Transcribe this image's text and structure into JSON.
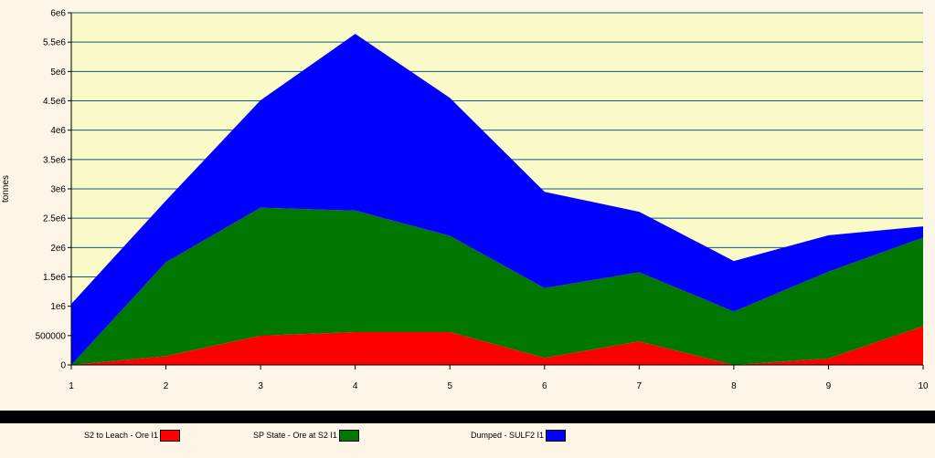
{
  "chart_data": {
    "type": "area",
    "stacked": true,
    "title": "",
    "xlabel": "",
    "ylabel": "tonnes",
    "x": [
      1,
      2,
      3,
      4,
      5,
      6,
      7,
      8,
      9,
      10
    ],
    "xlim": [
      1,
      10
    ],
    "ylim": [
      0,
      6000000
    ],
    "y_ticks": [
      0,
      500000,
      1000000,
      1500000,
      2000000,
      2500000,
      3000000,
      3500000,
      4000000,
      4500000,
      5000000,
      5500000,
      6000000
    ],
    "y_tick_labels": [
      "0",
      "500000",
      "1e6",
      "1.5e6",
      "2e6",
      "2.5e6",
      "3e6",
      "3.5e6",
      "4e6",
      "4.5e6",
      "5e6",
      "5.5e6",
      "6e6"
    ],
    "x_tick_labels": [
      "1",
      "2",
      "3",
      "4",
      "5",
      "6",
      "7",
      "8",
      "9",
      "10"
    ],
    "grid": true,
    "legend_position": "bottom",
    "background_color": "#fdf5e6",
    "plot_background_color": "#fafac8",
    "grid_color": "#0a5a82",
    "series": [
      {
        "name": "S2 to Leach - Ore I1",
        "color": "#ff0000",
        "values": [
          0,
          150000,
          500000,
          560000,
          560000,
          120000,
          400000,
          0,
          110000,
          660000
        ]
      },
      {
        "name": "SP State - Ore at S2 I1",
        "color": "#007800",
        "values": [
          0,
          1600000,
          2180000,
          2070000,
          1640000,
          1190000,
          1180000,
          910000,
          1480000,
          1510000
        ]
      },
      {
        "name": "Dumped - SULF2 I1",
        "color": "#0000ff",
        "values": [
          1040000,
          1050000,
          1830000,
          3010000,
          2350000,
          1640000,
          1030000,
          860000,
          620000,
          190000
        ]
      }
    ]
  }
}
